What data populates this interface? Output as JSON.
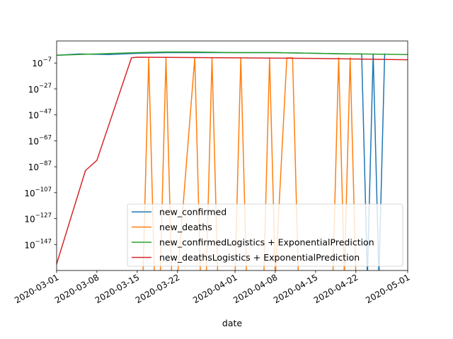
{
  "chart_data": {
    "type": "line",
    "xlabel": "date",
    "ylabel": "",
    "title": "",
    "y_scale": "log",
    "x_range": [
      "2020-03-01",
      "2020-05-01"
    ],
    "y_log10_range": [
      -167,
      10
    ],
    "x_ticks": [
      "2020-03-01",
      "2020-03-08",
      "2020-03-15",
      "2020-03-22",
      "2020-04-01",
      "2020-04-08",
      "2020-04-15",
      "2020-04-22",
      "2020-05-01"
    ],
    "x_tick_labels": [
      "2020-03-01",
      "2020-03-08",
      "2020-03-15",
      "2020-03-22",
      "2020-04-01",
      "2020-04-08",
      "2020-04-15",
      "2020-04-22",
      "2020-05-01"
    ],
    "y_ticks_log10": [
      -7,
      -27,
      -47,
      -67,
      -87,
      -107,
      -127,
      -147
    ],
    "y_tick_labels": [
      {
        "base": "10",
        "exp": "−7"
      },
      {
        "base": "10",
        "exp": "−27"
      },
      {
        "base": "10",
        "exp": "−47"
      },
      {
        "base": "10",
        "exp": "−67"
      },
      {
        "base": "10",
        "exp": "−87"
      },
      {
        "base": "10",
        "exp": "−107"
      },
      {
        "base": "10",
        "exp": "−127"
      },
      {
        "base": "10",
        "exp": "−147"
      }
    ],
    "grid": false,
    "legend_position": "lower-right",
    "series": [
      {
        "name": "new_confirmed",
        "color": "#1f77b4",
        "x": [
          "2020-03-01",
          "2020-03-05",
          "2020-03-10",
          "2020-03-15",
          "2020-03-20",
          "2020-03-25",
          "2020-04-01",
          "2020-04-08",
          "2020-04-15",
          "2020-04-20",
          "2020-04-23",
          "2020-04-24",
          "2020-04-25",
          "2020-04-26",
          "2020-04-27"
        ],
        "log10_y": [
          -1,
          0,
          -0.5,
          0.5,
          1,
          1,
          1,
          1,
          0.5,
          0,
          0,
          -250,
          0,
          -250,
          0
        ]
      },
      {
        "name": "new_deaths",
        "color": "#ff7f0e",
        "x": [
          "2020-03-16",
          "2020-03-17",
          "2020-03-18",
          "2020-03-19",
          "2020-03-20",
          "2020-03-21",
          "2020-03-22",
          "2020-03-25",
          "2020-03-26",
          "2020-03-27",
          "2020-03-28",
          "2020-03-29",
          "2020-04-01",
          "2020-04-02",
          "2020-04-03",
          "2020-04-06",
          "2020-04-07",
          "2020-04-08",
          "2020-04-10",
          "2020-04-11",
          "2020-04-12",
          "2020-04-13",
          "2020-04-18",
          "2020-04-19",
          "2020-04-20",
          "2020-04-21",
          "2020-04-22"
        ],
        "log10_y": [
          -250,
          -3,
          -250,
          -250,
          -3,
          -250,
          -250,
          -3,
          -250,
          -250,
          -3,
          -250,
          -250,
          -3,
          -250,
          -250,
          -3,
          -250,
          -3,
          -3,
          -250,
          -250,
          -250,
          -3,
          -250,
          -3,
          -250
        ]
      },
      {
        "name": "new_confirmedLogistics + ExponentialPrediction",
        "color": "#2ca02c",
        "x": [
          "2020-03-01",
          "2020-03-08",
          "2020-03-15",
          "2020-03-20",
          "2020-03-25",
          "2020-04-01",
          "2020-04-08",
          "2020-04-15",
          "2020-04-22",
          "2020-05-01"
        ],
        "log10_y": [
          -1,
          0,
          1,
          1.5,
          1.5,
          1,
          1,
          0.5,
          0,
          -0.5
        ]
      },
      {
        "name": "new_deathsLogistics + ExponentialPrediction",
        "color": "#d62728",
        "x": [
          "2020-03-01",
          "2020-03-06",
          "2020-03-08",
          "2020-03-14",
          "2020-03-15",
          "2020-04-01",
          "2020-04-15",
          "2020-05-01"
        ],
        "log10_y": [
          -162,
          -90,
          -82,
          -3,
          -2.5,
          -3,
          -3.5,
          -4.5
        ]
      }
    ]
  }
}
